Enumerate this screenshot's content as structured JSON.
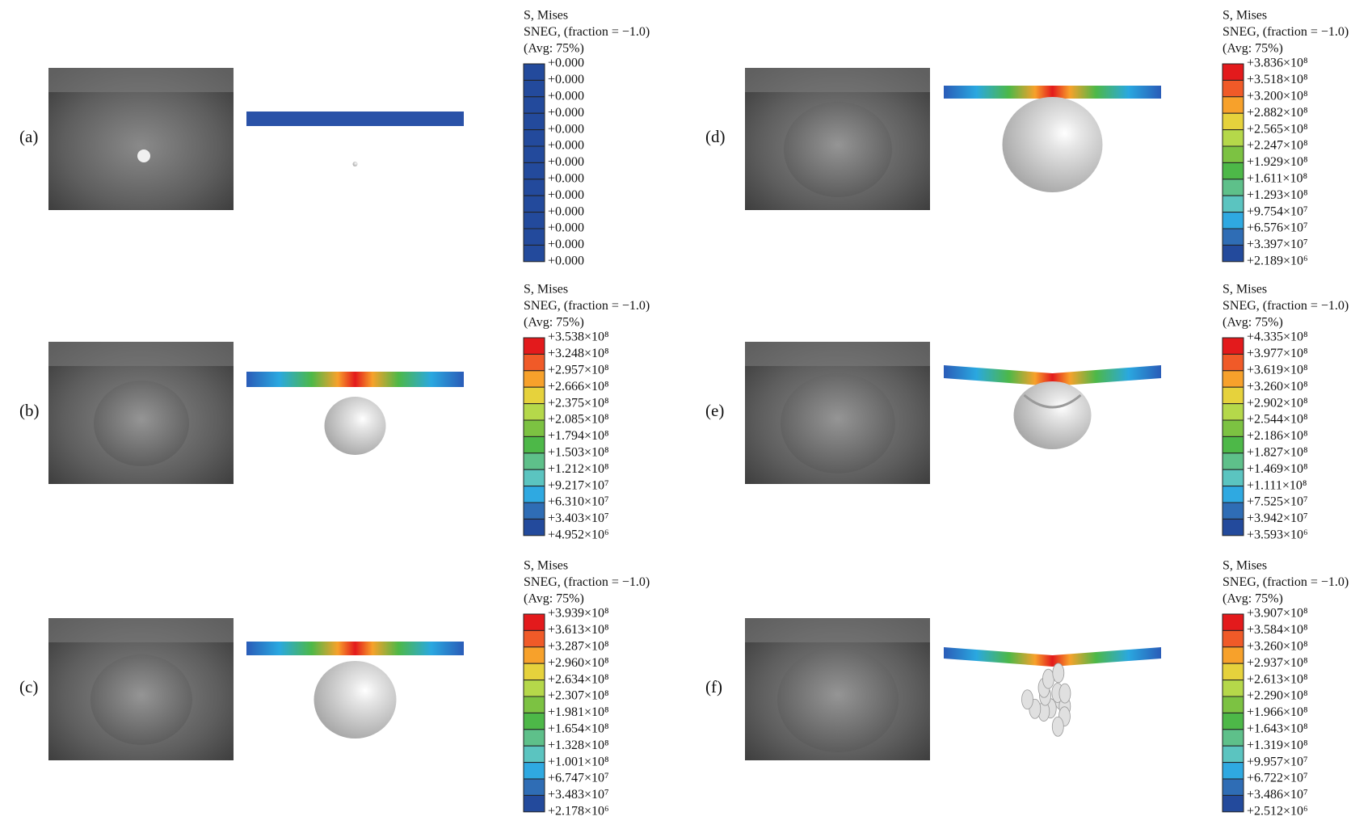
{
  "panels": [
    {
      "label": "(a)",
      "legend": {
        "title": [
          "S, Mises",
          "SNEG, (fraction = −1.0)",
          "(Avg: 75%)"
        ],
        "values": [
          "+0.000",
          "+0.000",
          "+0.000",
          "+0.000",
          "+0.000",
          "+0.000",
          "+0.000",
          "+0.000",
          "+0.000",
          "+0.000",
          "+0.000",
          "+0.000",
          "+0.000"
        ]
      }
    },
    {
      "label": "(b)",
      "legend": {
        "title": [
          "S, Mises",
          "SNEG, (fraction = −1.0)",
          "(Avg: 75%)"
        ],
        "values": [
          "+3.538×10⁸",
          "+3.248×10⁸",
          "+2.957×10⁸",
          "+2.666×10⁸",
          "+2.375×10⁸",
          "+2.085×10⁸",
          "+1.794×10⁸",
          "+1.503×10⁸",
          "+1.212×10⁸",
          "+9.217×10⁷",
          "+6.310×10⁷",
          "+3.403×10⁷",
          "+4.952×10⁶"
        ]
      }
    },
    {
      "label": "(c)",
      "legend": {
        "title": [
          "S, Mises",
          "SNEG, (fraction = −1.0)",
          "(Avg: 75%)"
        ],
        "values": [
          "+3.939×10⁸",
          "+3.613×10⁸",
          "+3.287×10⁸",
          "+2.960×10⁸",
          "+2.634×10⁸",
          "+2.307×10⁸",
          "+1.981×10⁸",
          "+1.654×10⁸",
          "+1.328×10⁸",
          "+1.001×10⁸",
          "+6.747×10⁷",
          "+3.483×10⁷",
          "+2.178×10⁶"
        ]
      }
    },
    {
      "label": "(d)",
      "legend": {
        "title": [
          "S, Mises",
          "SNEG, (fraction = −1.0)",
          "(Avg: 75%)"
        ],
        "values": [
          "+3.836×10⁸",
          "+3.518×10⁸",
          "+3.200×10⁸",
          "+2.882×10⁸",
          "+2.565×10⁸",
          "+2.247×10⁸",
          "+1.929×10⁸",
          "+1.611×10⁸",
          "+1.293×10⁸",
          "+9.754×10⁷",
          "+6.576×10⁷",
          "+3.397×10⁷",
          "+2.189×10⁶"
        ]
      }
    },
    {
      "label": "(e)",
      "legend": {
        "title": [
          "S, Mises",
          "SNEG, (fraction = −1.0)",
          "(Avg: 75%)"
        ],
        "values": [
          "+4.335×10⁸",
          "+3.977×10⁸",
          "+3.619×10⁸",
          "+3.260×10⁸",
          "+2.902×10⁸",
          "+2.544×10⁸",
          "+2.186×10⁸",
          "+1.827×10⁸",
          "+1.469×10⁸",
          "+1.111×10⁸",
          "+7.525×10⁷",
          "+3.942×10⁷",
          "+3.593×10⁶"
        ]
      }
    },
    {
      "label": "(f)",
      "legend": {
        "title": [
          "S, Mises",
          "SNEG, (fraction = −1.0)",
          "(Avg: 75%)"
        ],
        "values": [
          "+3.907×10⁸",
          "+3.584×10⁸",
          "+3.260×10⁸",
          "+2.937×10⁸",
          "+2.613×10⁸",
          "+2.290×10⁸",
          "+1.966×10⁸",
          "+1.643×10⁸",
          "+1.319×10⁸",
          "+9.957×10⁷",
          "+6.722×10⁷",
          "+3.486×10⁷",
          "+2.512×10⁶"
        ]
      }
    }
  ]
}
